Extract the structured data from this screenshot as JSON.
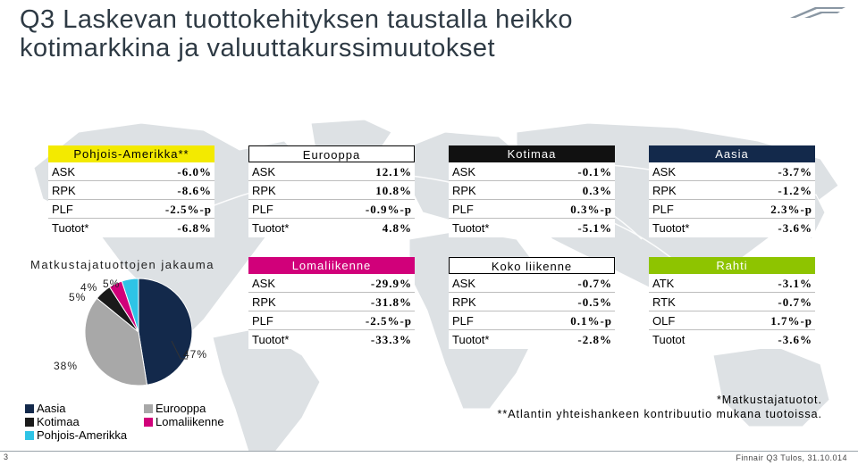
{
  "title": {
    "line1": "Q3 Laskevan tuottokehityksen taustalla heikko",
    "line2": "kotimarkkina ja valuuttakurssimuutokset"
  },
  "regions": [
    {
      "name": "Pohjois-Amerikka**",
      "header_color": "#f3ea00",
      "rows": [
        {
          "label": "ASK",
          "value": "-6.0%"
        },
        {
          "label": "RPK",
          "value": "-8.6%"
        },
        {
          "label": "PLF",
          "value": "-2.5%-p"
        },
        {
          "label": "Tuotot*",
          "value": "-6.8%"
        }
      ]
    },
    {
      "name": "Eurooppa",
      "header_color": "#ffffff",
      "rows": [
        {
          "label": "ASK",
          "value": "12.1%"
        },
        {
          "label": "RPK",
          "value": "10.8%"
        },
        {
          "label": "PLF",
          "value": "-0.9%-p"
        },
        {
          "label": "Tuotot*",
          "value": "4.8%"
        }
      ]
    },
    {
      "name": "Kotimaa",
      "header_color": "#111111",
      "rows": [
        {
          "label": "ASK",
          "value": "-0.1%"
        },
        {
          "label": "RPK",
          "value": "0.3%"
        },
        {
          "label": "PLF",
          "value": "0.3%-p"
        },
        {
          "label": "Tuotot*",
          "value": "-5.1%"
        }
      ]
    },
    {
      "name": "Aasia",
      "header_color": "#13294b",
      "rows": [
        {
          "label": "ASK",
          "value": "-3.7%"
        },
        {
          "label": "RPK",
          "value": "-1.2%"
        },
        {
          "label": "PLF",
          "value": "2.3%-p"
        },
        {
          "label": "Tuotot*",
          "value": "-3.6%"
        }
      ]
    },
    {
      "name": "Lomaliikenne",
      "header_color": "#d1007a",
      "rows": [
        {
          "label": "ASK",
          "value": "-29.9%"
        },
        {
          "label": "RPK",
          "value": "-31.8%"
        },
        {
          "label": "PLF",
          "value": "-2.5%-p"
        },
        {
          "label": "Tuotot*",
          "value": "-33.3%"
        }
      ]
    },
    {
      "name": "Koko liikenne",
      "header_color": "#ffffff",
      "rows": [
        {
          "label": "ASK",
          "value": "-0.7%"
        },
        {
          "label": "RPK",
          "value": "-0.5%"
        },
        {
          "label": "PLF",
          "value": "0.1%-p"
        },
        {
          "label": "Tuotot*",
          "value": "-2.8%"
        }
      ]
    },
    {
      "name": "Rahti",
      "header_color": "#8ec400",
      "rows": [
        {
          "label": "ATK",
          "value": "-3.1%"
        },
        {
          "label": "RTK",
          "value": "-0.7%"
        },
        {
          "label": "OLF",
          "value": "1.7%-p"
        },
        {
          "label": "Tuotot",
          "value": "-3.6%"
        }
      ]
    }
  ],
  "distribution": {
    "title": "Matkustajatuottojen jakauma",
    "slices": [
      {
        "name": "Aasia",
        "value": 47,
        "label": "47%",
        "color": "#13294b"
      },
      {
        "name": "Eurooppa",
        "value": 38,
        "label": "38%",
        "color": "#a8a8a8"
      },
      {
        "name": "Kotimaa",
        "value": 5,
        "label": "5%",
        "color": "#1a1a1a"
      },
      {
        "name": "Lomaliikenne",
        "value": 4,
        "label": "4%",
        "color": "#d1007a"
      },
      {
        "name": "Pohjois-Amerikka",
        "value": 5,
        "label": "5%",
        "color": "#2ec4e6"
      }
    ],
    "legend": [
      "Aasia",
      "Eurooppa",
      "Kotimaa",
      "Lomaliikenne",
      "Pohjois-Amerikka"
    ]
  },
  "notes": {
    "note1": "*Matkustajatuotot.",
    "note2": "**Atlantin yhteishankeen kontribuutio mukana tuotoissa."
  },
  "footer": {
    "page": "3",
    "text": "Finnair Q3 Tulos, 31.10.014"
  },
  "icons": {
    "logo": "finnair-wing-logo",
    "map": "world-map-background"
  }
}
